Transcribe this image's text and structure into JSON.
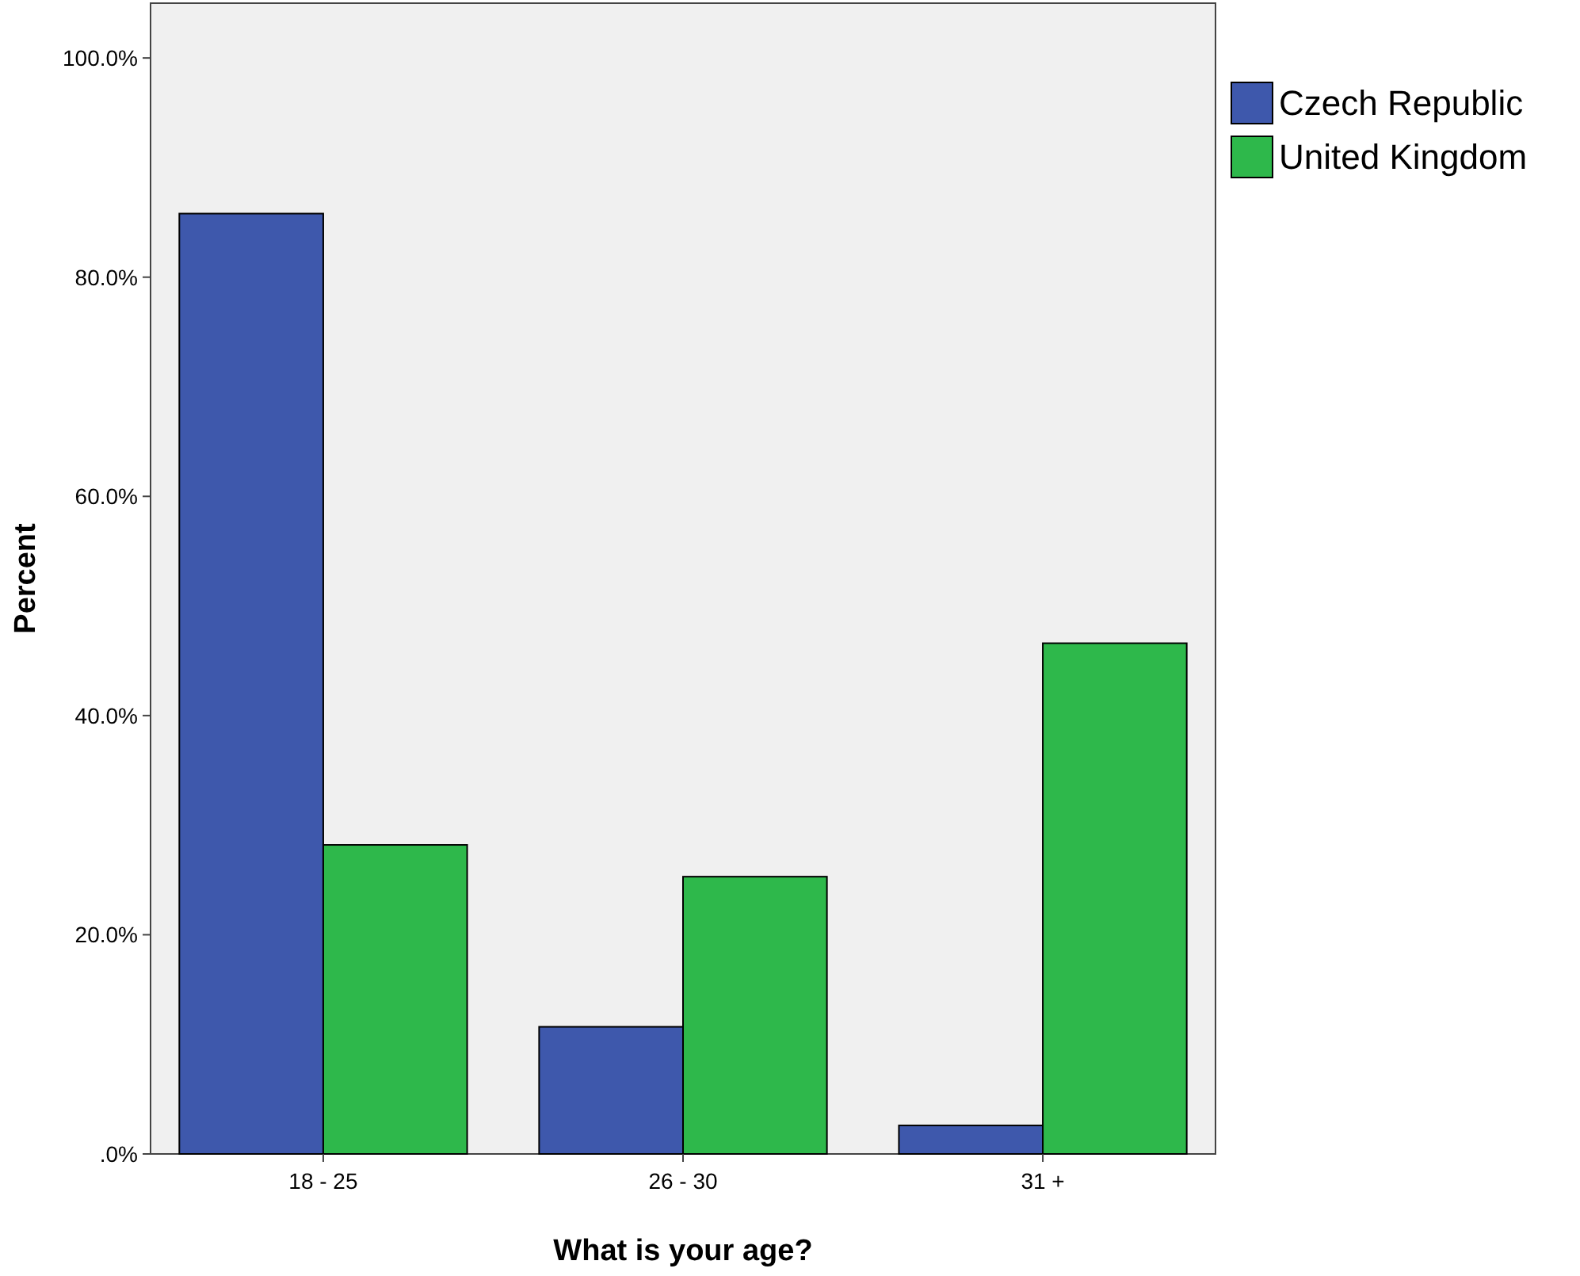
{
  "chart_data": {
    "type": "bar",
    "xlabel": "What is your age?",
    "ylabel": "Percent",
    "categories": [
      "18 - 25",
      "26 - 30",
      "31 +"
    ],
    "series": [
      {
        "name": "Czech Republic",
        "color": "#3e58ac",
        "values": [
          85.8,
          11.6,
          2.6
        ]
      },
      {
        "name": "United Kingdom",
        "color": "#2eb84b",
        "values": [
          28.2,
          25.3,
          46.6
        ]
      }
    ],
    "ylim": [
      0,
      105
    ],
    "yticks": [
      {
        "value": 0,
        "label": ".0%"
      },
      {
        "value": 20,
        "label": "20.0%"
      },
      {
        "value": 40,
        "label": "40.0%"
      },
      {
        "value": 60,
        "label": "60.0%"
      },
      {
        "value": 80,
        "label": "80.0%"
      },
      {
        "value": 100,
        "label": "100.0%"
      }
    ],
    "grid": false,
    "legend": "top right"
  }
}
